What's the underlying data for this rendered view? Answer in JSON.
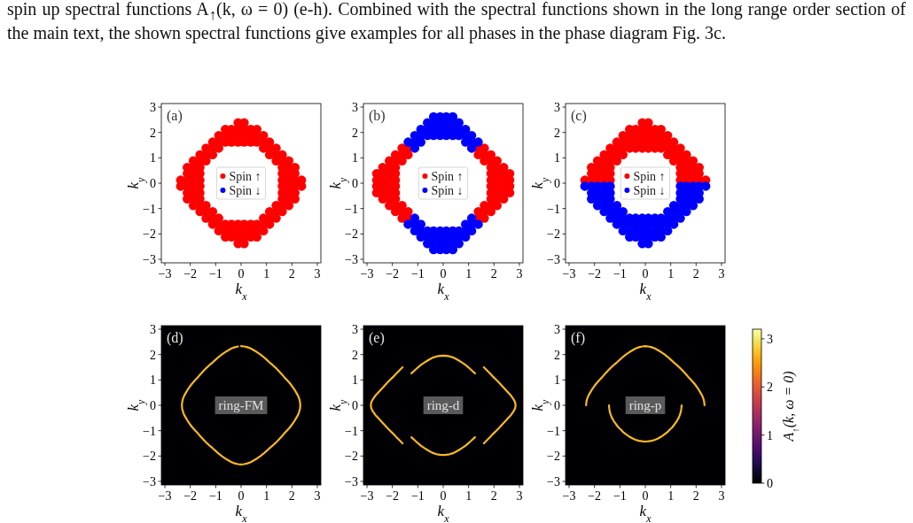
{
  "chart_data": [
    {
      "type": "scatter",
      "title": "(a)",
      "xlabel": "k$_{x}$",
      "ylabel": "k$_{y}$",
      "xlim": [
        -3.14,
        3.14
      ],
      "ylim": [
        -3.14,
        3.14
      ],
      "xticks": [
        {
          "value": -3,
          "label": "−3"
        },
        {
          "value": -2,
          "label": "−2"
        },
        {
          "value": -1,
          "label": "−1"
        },
        0,
        1,
        2,
        3
      ],
      "yticks": [
        {
          "value": -3,
          "label": "−3"
        },
        {
          "value": -2,
          "label": "−2"
        },
        {
          "value": -1,
          "label": "−1"
        },
        0,
        1,
        2,
        3
      ],
      "marker": "circle",
      "legend": "center",
      "annotations": [
        "spin up spectral functions A$_{↑}$(k, ω = 0) (e-h). Combined with the spectral functions shown in the long range order section of the main text, the shown spectral functions give examples for all phases in the phase diagram Fig. 3c."
      ],
      "series": [
        {
          "name": "Spin ↑",
          "color": "#ff0000",
          "x": [
            -0.12,
            0.12,
            -0.62,
            -0.38,
            -0.12,
            0.12,
            0.38,
            0.62,
            -0.88,
            -0.62,
            -0.38,
            -0.12,
            0.12,
            0.38,
            0.62,
            0.88,
            -1.12,
            -0.88,
            -0.62,
            -0.38,
            -0.12,
            0.12,
            0.38,
            0.62,
            0.88,
            1.12,
            -1.38,
            -1.12,
            -0.88,
            0.88,
            1.12,
            1.38,
            -1.62,
            -1.38,
            -1.12,
            1.12,
            1.38,
            1.62,
            -1.88,
            -1.62,
            -1.38,
            1.38,
            1.62,
            1.88,
            -2.12,
            -1.88,
            -1.62,
            1.62,
            1.88,
            2.12,
            -2.12,
            -1.88,
            -1.62,
            1.62,
            1.88,
            2.12,
            -2.38,
            -2.12,
            -1.88,
            -1.62,
            1.62,
            1.88,
            2.12,
            2.38,
            -2.38,
            -2.12,
            -1.88,
            -1.62,
            1.62,
            1.88,
            2.12,
            2.38,
            -2.12,
            -1.88,
            -1.62,
            1.62,
            1.88,
            2.12,
            -2.12,
            -1.88,
            -1.62,
            1.62,
            1.88,
            2.12,
            -1.88,
            -1.62,
            -1.38,
            1.38,
            1.62,
            1.88,
            -1.62,
            -1.38,
            -1.12,
            1.12,
            1.38,
            1.62,
            -1.38,
            -1.12,
            -0.88,
            0.88,
            1.12,
            1.38,
            -1.12,
            -0.88,
            -0.62,
            -0.38,
            -0.12,
            0.12,
            0.38,
            0.62,
            0.88,
            1.12,
            -0.88,
            -0.62,
            -0.38,
            -0.12,
            0.12,
            0.38,
            0.62,
            0.88,
            -0.62,
            -0.38,
            -0.12,
            0.12,
            0.38,
            0.62,
            -0.12,
            0.12
          ],
          "values": [
            2.38,
            2.38,
            2.12,
            2.12,
            2.12,
            2.12,
            2.12,
            2.12,
            1.88,
            1.88,
            1.88,
            1.88,
            1.88,
            1.88,
            1.88,
            1.88,
            1.62,
            1.62,
            1.62,
            1.62,
            1.62,
            1.62,
            1.62,
            1.62,
            1.62,
            1.62,
            1.38,
            1.38,
            1.38,
            1.38,
            1.38,
            1.38,
            1.12,
            1.12,
            1.12,
            1.12,
            1.12,
            1.12,
            0.88,
            0.88,
            0.88,
            0.88,
            0.88,
            0.88,
            0.62,
            0.62,
            0.62,
            0.62,
            0.62,
            0.62,
            0.38,
            0.38,
            0.38,
            0.38,
            0.38,
            0.38,
            0.12,
            0.12,
            0.12,
            0.12,
            0.12,
            0.12,
            0.12,
            0.12,
            -0.12,
            -0.12,
            -0.12,
            -0.12,
            -0.12,
            -0.12,
            -0.12,
            -0.12,
            -0.38,
            -0.38,
            -0.38,
            -0.38,
            -0.38,
            -0.38,
            -0.62,
            -0.62,
            -0.62,
            -0.62,
            -0.62,
            -0.62,
            -0.88,
            -0.88,
            -0.88,
            -0.88,
            -0.88,
            -0.88,
            -1.12,
            -1.12,
            -1.12,
            -1.12,
            -1.12,
            -1.12,
            -1.38,
            -1.38,
            -1.38,
            -1.38,
            -1.38,
            -1.38,
            -1.62,
            -1.62,
            -1.62,
            -1.62,
            -1.62,
            -1.62,
            -1.62,
            -1.62,
            -1.62,
            -1.62,
            -1.88,
            -1.88,
            -1.88,
            -1.88,
            -1.88,
            -1.88,
            -1.88,
            -1.88,
            -2.12,
            -2.12,
            -2.12,
            -2.12,
            -2.12,
            -2.12,
            -2.38,
            -2.38
          ]
        },
        {
          "name": "Spin ↓",
          "color": "#0000ff"
        }
      ]
    },
    {
      "type": "scatter",
      "title": "(b)",
      "xlabel": "k$_{x}$",
      "ylabel": "k$_{y}$",
      "xlim": [
        -3.14,
        3.14
      ],
      "ylim": [
        -3.14,
        3.14
      ],
      "xticks": [
        {
          "value": -3,
          "label": "−3"
        },
        {
          "value": -2,
          "label": "−2"
        },
        {
          "value": -1,
          "label": "−1"
        },
        0,
        1,
        2,
        3
      ],
      "yticks": [
        {
          "value": -3,
          "label": "−3"
        },
        {
          "value": -2,
          "label": "−2"
        },
        {
          "value": -1,
          "label": "−1"
        },
        0,
        1,
        2,
        3
      ],
      "marker": "circle",
      "legend": "center",
      "series": [
        {
          "name": "Spin ↑",
          "color": "#ff0000",
          "x": [
            -1.62,
            -1.38,
            1.38,
            1.62,
            -1.88,
            -1.62,
            -1.38,
            1.38,
            1.62,
            1.88,
            -2.12,
            -1.88,
            -1.62,
            1.62,
            1.88,
            2.12,
            -2.38,
            -2.12,
            -1.88,
            1.88,
            2.12,
            2.38,
            -2.62,
            -2.38,
            -2.12,
            -1.88,
            1.88,
            2.12,
            2.38,
            2.62,
            -2.62,
            -2.38,
            -2.12,
            -1.88,
            1.88,
            2.12,
            2.38,
            2.62,
            -2.62,
            -2.38,
            -2.12,
            -1.88,
            1.88,
            2.12,
            2.38,
            2.62,
            -2.62,
            -2.38,
            -2.12,
            -1.88,
            1.88,
            2.12,
            2.38,
            2.62,
            -2.38,
            -2.12,
            -1.88,
            1.88,
            2.12,
            2.38,
            -2.12,
            -1.88,
            -1.62,
            1.62,
            1.88,
            2.12,
            -1.88,
            -1.62,
            -1.38,
            1.38,
            1.62,
            1.88,
            -1.62,
            -1.38,
            1.38,
            1.62
          ],
          "values": [
            1.38,
            1.38,
            1.38,
            1.38,
            1.12,
            1.12,
            1.12,
            1.12,
            1.12,
            1.12,
            0.88,
            0.88,
            0.88,
            0.88,
            0.88,
            0.88,
            0.62,
            0.62,
            0.62,
            0.62,
            0.62,
            0.62,
            0.38,
            0.38,
            0.38,
            0.38,
            0.38,
            0.38,
            0.38,
            0.38,
            0.12,
            0.12,
            0.12,
            0.12,
            0.12,
            0.12,
            0.12,
            0.12,
            -0.12,
            -0.12,
            -0.12,
            -0.12,
            -0.12,
            -0.12,
            -0.12,
            -0.12,
            -0.38,
            -0.38,
            -0.38,
            -0.38,
            -0.38,
            -0.38,
            -0.38,
            -0.38,
            -0.62,
            -0.62,
            -0.62,
            -0.62,
            -0.62,
            -0.62,
            -0.88,
            -0.88,
            -0.88,
            -0.88,
            -0.88,
            -0.88,
            -1.12,
            -1.12,
            -1.12,
            -1.12,
            -1.12,
            -1.12,
            -1.38,
            -1.38,
            -1.38,
            -1.38
          ]
        },
        {
          "name": "Spin ↓",
          "color": "#0000ff",
          "x": [
            -0.38,
            -0.12,
            0.12,
            0.38,
            -0.62,
            -0.38,
            -0.12,
            0.12,
            0.38,
            0.62,
            -0.88,
            -0.62,
            -0.38,
            -0.12,
            0.12,
            0.38,
            0.62,
            0.88,
            -1.12,
            -0.88,
            -0.62,
            -0.38,
            -0.12,
            0.12,
            0.38,
            0.62,
            0.88,
            1.12,
            -1.38,
            -1.12,
            -0.88,
            0.88,
            1.12,
            1.38,
            -1.12,
            1.12,
            -1.12,
            1.12,
            -1.38,
            -1.12,
            -0.88,
            0.88,
            1.12,
            1.38,
            -1.12,
            -0.88,
            -0.62,
            -0.38,
            -0.12,
            0.12,
            0.38,
            0.62,
            0.88,
            1.12,
            -0.88,
            -0.62,
            -0.38,
            -0.12,
            0.12,
            0.38,
            0.62,
            0.88,
            -0.62,
            -0.38,
            -0.12,
            0.12,
            0.38,
            0.62,
            -0.38,
            -0.12,
            0.12,
            0.38
          ],
          "values": [
            2.62,
            2.62,
            2.62,
            2.62,
            2.38,
            2.38,
            2.38,
            2.38,
            2.38,
            2.38,
            2.12,
            2.12,
            2.12,
            2.12,
            2.12,
            2.12,
            2.12,
            2.12,
            1.88,
            1.88,
            1.88,
            1.88,
            1.88,
            1.88,
            1.88,
            1.88,
            1.88,
            1.88,
            1.62,
            1.62,
            1.62,
            1.62,
            1.62,
            1.62,
            1.38,
            1.38,
            -1.38,
            -1.38,
            -1.62,
            -1.62,
            -1.62,
            -1.62,
            -1.62,
            -1.62,
            -1.88,
            -1.88,
            -1.88,
            -1.88,
            -1.88,
            -1.88,
            -1.88,
            -1.88,
            -1.88,
            -1.88,
            -2.12,
            -2.12,
            -2.12,
            -2.12,
            -2.12,
            -2.12,
            -2.12,
            -2.12,
            -2.38,
            -2.38,
            -2.38,
            -2.38,
            -2.38,
            -2.38,
            -2.62,
            -2.62,
            -2.62,
            -2.62
          ]
        }
      ]
    },
    {
      "type": "scatter",
      "title": "(c)",
      "xlabel": "k$_{x}$",
      "ylabel": "k$_{y}$",
      "xlim": [
        -3.14,
        3.14
      ],
      "ylim": [
        -3.14,
        3.14
      ],
      "xticks": [
        {
          "value": -3,
          "label": "−3"
        },
        {
          "value": -2,
          "label": "−2"
        },
        {
          "value": -1,
          "label": "−1"
        },
        0,
        1,
        2,
        3
      ],
      "yticks": [
        {
          "value": -3,
          "label": "−3"
        },
        {
          "value": -2,
          "label": "−2"
        },
        {
          "value": -1,
          "label": "−1"
        },
        0,
        1,
        2,
        3
      ],
      "marker": "circle",
      "legend": "center",
      "series": [
        {
          "name": "Spin ↑",
          "color": "#ff0000",
          "x": [
            -0.12,
            0.12,
            -0.62,
            -0.38,
            -0.12,
            0.12,
            0.38,
            0.62,
            -0.88,
            -0.62,
            -0.38,
            -0.12,
            0.12,
            0.38,
            0.62,
            0.88,
            -1.12,
            -0.88,
            -0.62,
            -0.38,
            -0.12,
            0.12,
            0.38,
            0.62,
            0.88,
            1.12,
            -1.38,
            -1.12,
            -0.88,
            -0.62,
            -0.38,
            -0.12,
            0.12,
            0.38,
            0.62,
            0.88,
            1.12,
            1.38,
            -1.62,
            -1.38,
            -1.12,
            -0.88,
            0.88,
            1.12,
            1.38,
            1.62,
            -1.88,
            -1.62,
            -1.38,
            -1.12,
            1.12,
            1.38,
            1.62,
            1.88,
            -2.12,
            -1.88,
            -1.62,
            -1.38,
            1.38,
            1.62,
            1.88,
            2.12,
            -2.12,
            -1.88,
            -1.62,
            -1.38,
            1.38,
            1.62,
            1.88,
            2.12,
            -2.38,
            -2.12,
            -1.88,
            -1.62,
            -1.38,
            1.38,
            1.62,
            1.88,
            2.12,
            2.38
          ],
          "values": [
            2.38,
            2.38,
            2.12,
            2.12,
            2.12,
            2.12,
            2.12,
            2.12,
            1.88,
            1.88,
            1.88,
            1.88,
            1.88,
            1.88,
            1.88,
            1.88,
            1.62,
            1.62,
            1.62,
            1.62,
            1.62,
            1.62,
            1.62,
            1.62,
            1.62,
            1.62,
            1.38,
            1.38,
            1.38,
            1.38,
            1.38,
            1.38,
            1.38,
            1.38,
            1.38,
            1.38,
            1.38,
            1.38,
            1.12,
            1.12,
            1.12,
            1.12,
            1.12,
            1.12,
            1.12,
            1.12,
            0.88,
            0.88,
            0.88,
            0.88,
            0.88,
            0.88,
            0.88,
            0.88,
            0.62,
            0.62,
            0.62,
            0.62,
            0.62,
            0.62,
            0.62,
            0.62,
            0.38,
            0.38,
            0.38,
            0.38,
            0.38,
            0.38,
            0.38,
            0.38,
            0.12,
            0.12,
            0.12,
            0.12,
            0.12,
            0.12,
            0.12,
            0.12,
            0.12,
            0.12
          ]
        },
        {
          "name": "Spin ↓",
          "color": "#0000ff",
          "x": [
            -2.38,
            -2.12,
            -1.88,
            -1.62,
            -1.38,
            1.38,
            1.62,
            1.88,
            2.12,
            2.38,
            -2.12,
            -1.88,
            -1.62,
            -1.38,
            1.38,
            1.62,
            1.88,
            2.12,
            -2.12,
            -1.88,
            -1.62,
            -1.38,
            1.38,
            1.62,
            1.88,
            2.12,
            -1.88,
            -1.62,
            -1.38,
            -1.12,
            1.12,
            1.38,
            1.62,
            1.88,
            -1.62,
            -1.38,
            -1.12,
            -0.88,
            0.88,
            1.12,
            1.38,
            1.62,
            -1.38,
            -1.12,
            -0.88,
            -0.62,
            -0.38,
            -0.12,
            0.12,
            0.38,
            0.62,
            0.88,
            1.12,
            1.38,
            -1.12,
            -0.88,
            -0.62,
            -0.38,
            -0.12,
            0.12,
            0.38,
            0.62,
            0.88,
            1.12,
            -0.88,
            -0.62,
            -0.38,
            -0.12,
            0.12,
            0.38,
            0.62,
            0.88,
            -0.62,
            -0.38,
            -0.12,
            0.12,
            0.38,
            0.62,
            -0.12,
            0.12
          ],
          "values": [
            -0.12,
            -0.12,
            -0.12,
            -0.12,
            -0.12,
            -0.12,
            -0.12,
            -0.12,
            -0.12,
            -0.12,
            -0.38,
            -0.38,
            -0.38,
            -0.38,
            -0.38,
            -0.38,
            -0.38,
            -0.38,
            -0.62,
            -0.62,
            -0.62,
            -0.62,
            -0.62,
            -0.62,
            -0.62,
            -0.62,
            -0.88,
            -0.88,
            -0.88,
            -0.88,
            -0.88,
            -0.88,
            -0.88,
            -0.88,
            -1.12,
            -1.12,
            -1.12,
            -1.12,
            -1.12,
            -1.12,
            -1.12,
            -1.12,
            -1.38,
            -1.38,
            -1.38,
            -1.38,
            -1.38,
            -1.38,
            -1.38,
            -1.38,
            -1.38,
            -1.38,
            -1.38,
            -1.38,
            -1.62,
            -1.62,
            -1.62,
            -1.62,
            -1.62,
            -1.62,
            -1.62,
            -1.62,
            -1.62,
            -1.62,
            -1.88,
            -1.88,
            -1.88,
            -1.88,
            -1.88,
            -1.88,
            -1.88,
            -1.88,
            -2.12,
            -2.12,
            -2.12,
            -2.12,
            -2.12,
            -2.12,
            -2.38,
            -2.38
          ]
        }
      ]
    },
    {
      "type": "line",
      "title": "(d)",
      "xlabel": "k$_{x}$",
      "ylabel": "k$_{y}$",
      "xlim": [
        -3.14,
        3.14
      ],
      "ylim": [
        -3.14,
        3.14
      ],
      "xticks": [
        {
          "value": -3,
          "label": "−3"
        },
        {
          "value": -2,
          "label": "−2"
        },
        {
          "value": -1,
          "label": "−1"
        },
        0,
        1,
        2,
        3
      ],
      "yticks": [
        {
          "value": -3,
          "label": "−3"
        },
        {
          "value": -2,
          "label": "−2"
        },
        {
          "value": -1,
          "label": "−1"
        },
        0,
        1,
        2,
        3
      ],
      "annotations": [
        "ring-FM"
      ],
      "series": [
        {
          "color": "#f9b824",
          "x": [
            0,
            0.12,
            0.25,
            0.38,
            0.5,
            0.62,
            0.75,
            0.88,
            1,
            1.12,
            1.25,
            1.38,
            1.46,
            1.58,
            1.69,
            1.8,
            1.91,
            2.01,
            2.1,
            2.17,
            2.24,
            2.29,
            2.32,
            2.33,
            2.32,
            2.29,
            2.24,
            2.17,
            2.1,
            2.01,
            1.91,
            1.8,
            1.69,
            1.58,
            1.46,
            1.38,
            1.25,
            1.12,
            1,
            0.88,
            0.75,
            0.62,
            0.5,
            0.38,
            0.25,
            0.12,
            0,
            -0.12,
            -0.25,
            -0.38,
            -0.5,
            -0.62,
            -0.75,
            -0.88,
            -1,
            -1.12,
            -1.25,
            -1.38,
            -1.46,
            -1.58,
            -1.69,
            -1.8,
            -1.91,
            -2.01,
            -2.1,
            -2.17,
            -2.24,
            -2.29,
            -2.32,
            -2.33,
            -2.32,
            -2.29,
            -2.24,
            -2.17,
            -2.1,
            -2.01,
            -1.91,
            -1.8,
            -1.69,
            -1.58,
            -1.46,
            -1.38,
            -1.25,
            -1.12,
            -1,
            -0.88,
            -0.75,
            -0.62,
            -0.5,
            -0.38,
            -0.25,
            -0.12
          ],
          "values": [
            2.33,
            2.32,
            2.29,
            2.24,
            2.17,
            2.1,
            2.01,
            1.91,
            1.8,
            1.69,
            1.58,
            1.46,
            1.38,
            1.25,
            1.12,
            1,
            0.88,
            0.75,
            0.62,
            0.5,
            0.38,
            0.25,
            0.12,
            0,
            -0.12,
            -0.25,
            -0.38,
            -0.5,
            -0.62,
            -0.75,
            -0.88,
            -1,
            -1.12,
            -1.25,
            -1.38,
            -1.46,
            -1.58,
            -1.69,
            -1.8,
            -1.91,
            -2.01,
            -2.1,
            -2.17,
            -2.24,
            -2.29,
            -2.32,
            -2.33,
            -2.32,
            -2.29,
            -2.24,
            -2.17,
            -2.1,
            -2.01,
            -1.91,
            -1.8,
            -1.69,
            -1.58,
            -1.46,
            -1.38,
            -1.25,
            -1.12,
            -1,
            -0.88,
            -0.75,
            -0.62,
            -0.5,
            -0.38,
            -0.25,
            -0.12,
            0,
            0.12,
            0.25,
            0.38,
            0.5,
            0.62,
            0.75,
            0.88,
            1,
            1.12,
            1.25,
            1.38,
            1.46,
            1.58,
            1.69,
            1.8,
            1.91,
            2.01,
            2.1,
            2.17,
            2.24,
            2.29,
            2.32
          ]
        }
      ]
    },
    {
      "type": "line",
      "title": "(e)",
      "xlabel": "k$_{x}$",
      "ylabel": "k$_{y}$",
      "xlim": [
        -3.14,
        3.14
      ],
      "ylim": [
        -3.14,
        3.14
      ],
      "xticks": [
        {
          "value": -3,
          "label": "−3"
        },
        {
          "value": -2,
          "label": "−2"
        },
        {
          "value": -1,
          "label": "−1"
        },
        0,
        1,
        2,
        3
      ],
      "yticks": [
        {
          "value": -3,
          "label": "−3"
        },
        {
          "value": -2,
          "label": "−2"
        },
        {
          "value": -1,
          "label": "−1"
        },
        0,
        1,
        2,
        3
      ],
      "annotations": [
        "ring-d"
      ],
      "series": [
        {
          "color": "#f9b824",
          "x": [
            1.6,
            1.72,
            1.85,
            1.97,
            2.09,
            2.21,
            2.33,
            2.45,
            2.56,
            2.67,
            2.76,
            2.83,
            2.85,
            2.83,
            2.76,
            2.67,
            2.56,
            2.45,
            2.33,
            2.21,
            2.09,
            1.97,
            1.85,
            1.72,
            1.6
          ],
          "values": [
            1.5,
            1.38,
            1.25,
            1.12,
            1,
            0.88,
            0.75,
            0.62,
            0.5,
            0.38,
            0.25,
            0.12,
            0,
            -0.12,
            -0.25,
            -0.38,
            -0.5,
            -0.62,
            -0.75,
            -0.88,
            -1,
            -1.12,
            -1.25,
            -1.38,
            -1.5
          ]
        },
        {
          "color": "#f9b824",
          "x": [
            -1.6,
            -1.72,
            -1.85,
            -1.97,
            -2.09,
            -2.21,
            -2.33,
            -2.45,
            -2.56,
            -2.67,
            -2.76,
            -2.83,
            -2.85,
            -2.83,
            -2.76,
            -2.67,
            -2.56,
            -2.45,
            -2.33,
            -2.21,
            -2.09,
            -1.97,
            -1.85,
            -1.72,
            -1.6
          ],
          "values": [
            1.5,
            1.38,
            1.25,
            1.12,
            1,
            0.88,
            0.75,
            0.62,
            0.5,
            0.38,
            0.25,
            0.12,
            0,
            -0.12,
            -0.25,
            -0.38,
            -0.5,
            -0.62,
            -0.75,
            -0.88,
            -1,
            -1.12,
            -1.25,
            -1.38,
            -1.5
          ]
        },
        {
          "color": "#f9b824",
          "x": [
            -1.25,
            -1.12,
            -1,
            -0.88,
            -0.75,
            -0.62,
            -0.5,
            -0.38,
            -0.25,
            -0.12,
            0,
            0.12,
            0.25,
            0.38,
            0.5,
            0.62,
            0.75,
            0.88,
            1,
            1.12,
            1.25
          ],
          "values": [
            1.26,
            1.38,
            1.49,
            1.59,
            1.68,
            1.76,
            1.83,
            1.89,
            1.93,
            1.95,
            1.96,
            1.95,
            1.93,
            1.89,
            1.83,
            1.76,
            1.68,
            1.59,
            1.49,
            1.38,
            1.26
          ]
        },
        {
          "color": "#f9b824",
          "x": [
            -1.25,
            -1.12,
            -1,
            -0.88,
            -0.75,
            -0.62,
            -0.5,
            -0.38,
            -0.25,
            -0.12,
            0,
            0.12,
            0.25,
            0.38,
            0.5,
            0.62,
            0.75,
            0.88,
            1,
            1.12,
            1.25
          ],
          "values": [
            -1.26,
            -1.38,
            -1.49,
            -1.59,
            -1.68,
            -1.76,
            -1.83,
            -1.89,
            -1.93,
            -1.95,
            -1.96,
            -1.95,
            -1.93,
            -1.89,
            -1.83,
            -1.76,
            -1.68,
            -1.59,
            -1.49,
            -1.38,
            -1.26
          ]
        }
      ]
    },
    {
      "type": "line",
      "title": "(f)",
      "xlabel": "k$_{x}$",
      "ylabel": "k$_{y}$",
      "xlim": [
        -3.14,
        3.14
      ],
      "ylim": [
        -3.14,
        3.14
      ],
      "xticks": [
        {
          "value": -3,
          "label": "−3"
        },
        {
          "value": -2,
          "label": "−2"
        },
        {
          "value": -1,
          "label": "−1"
        },
        0,
        1,
        2,
        3
      ],
      "yticks": [
        {
          "value": -3,
          "label": "−3"
        },
        {
          "value": -2,
          "label": "−2"
        },
        {
          "value": -1,
          "label": "−1"
        },
        0,
        1,
        2,
        3
      ],
      "clim": [
        0,
        3.2
      ],
      "cticks": [
        0,
        1,
        2,
        3
      ],
      "clabel": "A$_{↑}$(k, ω = 0)",
      "annotations": [
        "ring-p"
      ],
      "series": [
        {
          "color": "#f9b824",
          "x": [
            -2.33,
            -2.32,
            -2.29,
            -2.24,
            -2.17,
            -2.1,
            -2.01,
            -1.91,
            -1.8,
            -1.69,
            -1.58,
            -1.46,
            -1.38,
            -1.25,
            -1.12,
            -1,
            -0.88,
            -0.75,
            -0.62,
            -0.5,
            -0.38,
            -0.25,
            -0.12,
            0,
            0.12,
            0.25,
            0.38,
            0.5,
            0.62,
            0.75,
            0.88,
            1,
            1.12,
            1.25,
            1.38,
            1.46,
            1.58,
            1.69,
            1.8,
            1.91,
            2.01,
            2.1,
            2.17,
            2.24,
            2.29,
            2.32,
            2.33
          ],
          "values": [
            0,
            0.12,
            0.25,
            0.38,
            0.5,
            0.62,
            0.75,
            0.88,
            1,
            1.12,
            1.25,
            1.38,
            1.46,
            1.58,
            1.69,
            1.8,
            1.91,
            2.01,
            2.1,
            2.17,
            2.24,
            2.29,
            2.32,
            2.33,
            2.32,
            2.29,
            2.24,
            2.17,
            2.1,
            2.01,
            1.91,
            1.8,
            1.69,
            1.58,
            1.46,
            1.38,
            1.25,
            1.12,
            1,
            0.88,
            0.75,
            0.62,
            0.5,
            0.38,
            0.25,
            0.12,
            0
          ]
        },
        {
          "color": "#f9b824",
          "x": [
            -1.43,
            -1.42,
            -1.4,
            -1.36,
            -1.31,
            -1.24,
            -1.15,
            -1.05,
            -0.96,
            -0.88,
            -0.75,
            -0.62,
            -0.5,
            -0.38,
            -0.25,
            -0.12,
            0,
            0.12,
            0.25,
            0.38,
            0.5,
            0.62,
            0.75,
            0.88,
            0.96,
            1.05,
            1.15,
            1.24,
            1.31,
            1.36,
            1.4,
            1.42,
            1.43
          ],
          "values": [
            0,
            -0.12,
            -0.25,
            -0.38,
            -0.5,
            -0.62,
            -0.75,
            -0.88,
            -0.96,
            -1.05,
            -1.15,
            -1.24,
            -1.31,
            -1.36,
            -1.4,
            -1.42,
            -1.43,
            -1.42,
            -1.4,
            -1.36,
            -1.31,
            -1.24,
            -1.15,
            -1.05,
            -0.96,
            -0.88,
            -0.75,
            -0.62,
            -0.5,
            -0.38,
            -0.25,
            -0.12,
            0
          ]
        }
      ]
    }
  ]
}
